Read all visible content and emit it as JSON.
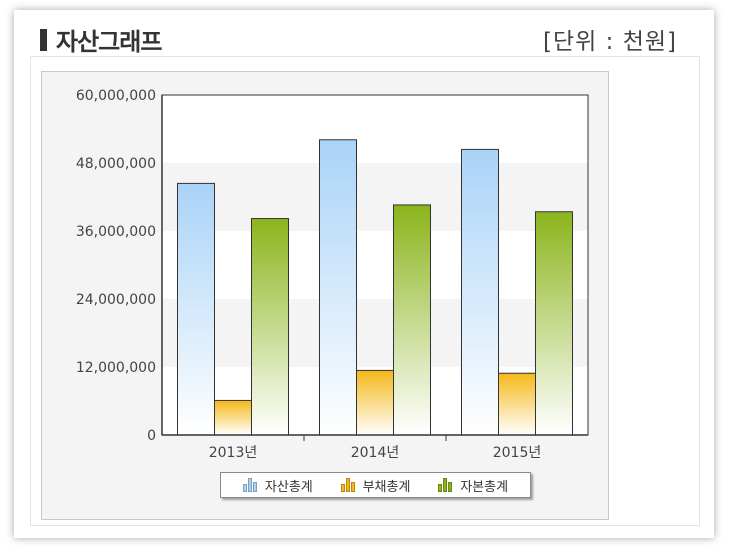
{
  "header": {
    "title": "자산그래프",
    "unit": "[단위 : 천원]"
  },
  "chart_data": {
    "type": "bar",
    "categories": [
      "2013년",
      "2014년",
      "2015년"
    ],
    "series": [
      {
        "name": "자산총계",
        "values": [
          44400000,
          52100000,
          50400000
        ],
        "color": "#a9d3f7",
        "icon": "bar-chart-icon"
      },
      {
        "name": "부채총계",
        "values": [
          6100000,
          11400000,
          10900000
        ],
        "color": "#f5b818",
        "icon": "bar-chart-icon"
      },
      {
        "name": "자본총계",
        "values": [
          38200000,
          40600000,
          39400000
        ],
        "color": "#8bb41c",
        "icon": "bar-chart-icon"
      }
    ],
    "ylim": [
      0,
      60000000
    ],
    "yticks": [
      "0",
      "12,000,000",
      "24,000,000",
      "36,000,000",
      "48,000,000",
      "60,000,000"
    ],
    "grid": "alternating horizontal bands",
    "legend": "bottom-center"
  }
}
